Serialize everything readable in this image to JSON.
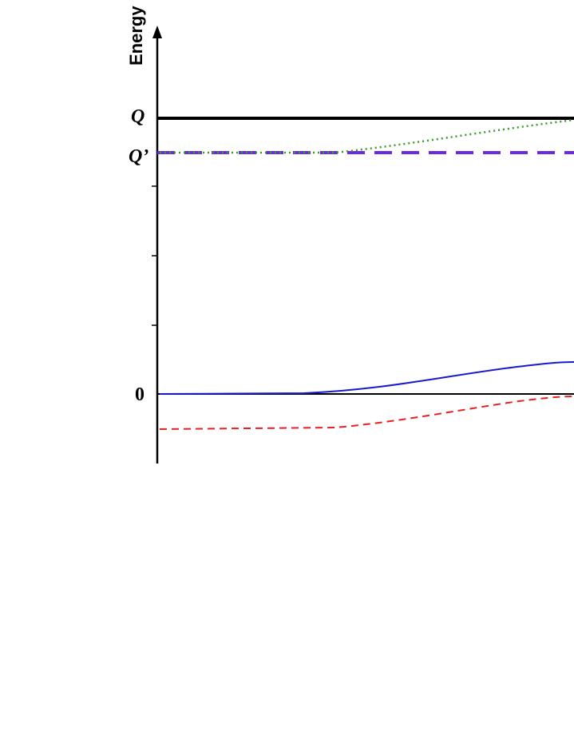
{
  "axis": {
    "label": "Energy"
  },
  "levels": {
    "q": "Q",
    "q_prime": "Q’",
    "zero": "0"
  }
}
